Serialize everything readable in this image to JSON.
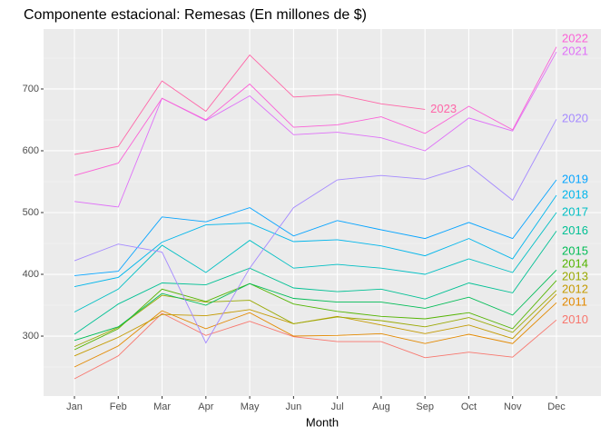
{
  "chart_data": {
    "type": "line",
    "title": "Componente estacional: Remesas (En millones de $)",
    "x_label": "Month",
    "categories": [
      "Jan",
      "Feb",
      "Mar",
      "Apr",
      "May",
      "Jun",
      "Jul",
      "Aug",
      "Sep",
      "Oct",
      "Nov",
      "Dec"
    ],
    "ylim": [
      203,
      797
    ],
    "yticks": [
      300,
      400,
      500,
      600,
      700
    ],
    "grid": true,
    "series": [
      {
        "name": "2010",
        "color": "#F8766D",
        "values": [
          231,
          268,
          337,
          301,
          324,
          299,
          291,
          291,
          265,
          274,
          266,
          326
        ]
      },
      {
        "name": "2011",
        "color": "#E38900",
        "values": [
          250,
          284,
          341,
          312,
          338,
          300,
          301,
          304,
          288,
          303,
          288,
          354
        ]
      },
      {
        "name": "2012",
        "color": "#C49A00",
        "values": [
          268,
          298,
          335,
          333,
          343,
          320,
          332,
          318,
          304,
          318,
          296,
          368
        ]
      },
      {
        "name": "2013",
        "color": "#99A800",
        "values": [
          283,
          314,
          366,
          355,
          358,
          320,
          331,
          325,
          315,
          330,
          306,
          374
        ]
      },
      {
        "name": "2014",
        "color": "#53B400",
        "values": [
          278,
          312,
          376,
          356,
          385,
          352,
          340,
          332,
          328,
          338,
          312,
          390
        ]
      },
      {
        "name": "2015",
        "color": "#00BC56",
        "values": [
          293,
          315,
          369,
          350,
          385,
          361,
          355,
          355,
          345,
          363,
          334,
          407
        ]
      },
      {
        "name": "2016",
        "color": "#00C094",
        "values": [
          303,
          352,
          386,
          383,
          410,
          378,
          372,
          376,
          360,
          386,
          370,
          470
        ]
      },
      {
        "name": "2017",
        "color": "#00BFC4",
        "values": [
          339,
          376,
          447,
          403,
          455,
          410,
          416,
          410,
          400,
          425,
          403,
          500
        ]
      },
      {
        "name": "2018",
        "color": "#00B6EB",
        "values": [
          380,
          395,
          452,
          480,
          483,
          453,
          456,
          446,
          430,
          458,
          425,
          528
        ]
      },
      {
        "name": "2019",
        "color": "#06A4FF",
        "values": [
          398,
          405,
          493,
          485,
          508,
          462,
          487,
          472,
          458,
          484,
          458,
          553
        ]
      },
      {
        "name": "2020",
        "color": "#A58AFF",
        "values": [
          422,
          449,
          436,
          289,
          410,
          508,
          553,
          560,
          554,
          576,
          520,
          651
        ]
      },
      {
        "name": "2021",
        "color": "#DF70F8",
        "values": [
          518,
          509,
          685,
          649,
          689,
          626,
          630,
          621,
          600,
          653,
          632,
          760
        ]
      },
      {
        "name": "2022",
        "color": "#FB61D7",
        "values": [
          560,
          580,
          685,
          650,
          708,
          638,
          642,
          655,
          628,
          672,
          634,
          768
        ]
      },
      {
        "name": "2023",
        "color": "#FF66A8",
        "values": [
          594,
          607,
          713,
          664,
          755,
          687,
          691,
          676,
          667,
          null,
          null,
          null
        ]
      }
    ]
  }
}
